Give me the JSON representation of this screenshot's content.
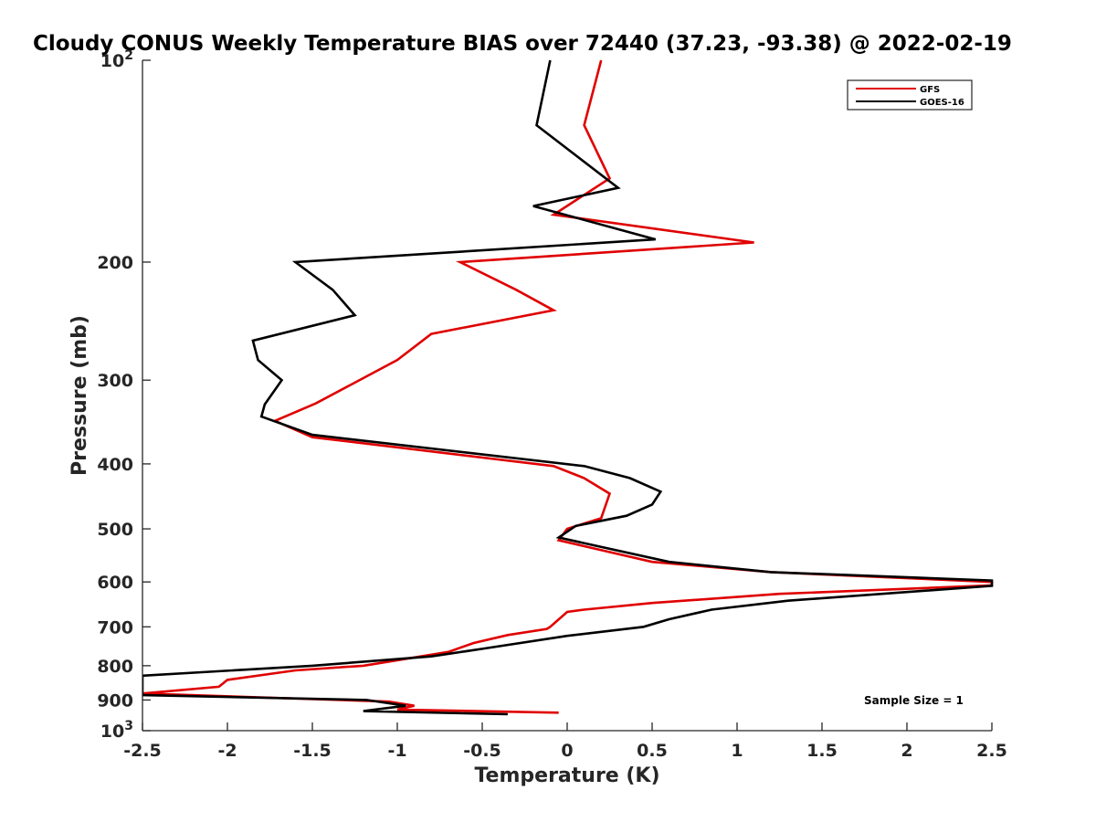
{
  "chart_data": {
    "type": "line",
    "title": "Cloudy CONUS Weekly Temperature BIAS over 72440 (37.23, -93.38) @ 2022-02-19",
    "xlabel": "Temperature (K)",
    "ylabel": "Pressure (mb)",
    "xlim": [
      -2.5,
      2.5
    ],
    "ylim": [
      100,
      1000
    ],
    "y_scale": "log",
    "y_reversed": true,
    "grid": false,
    "legend_position": "top-right",
    "x_ticks": [
      "-2.5",
      "-2",
      "-1.5",
      "-1",
      "-0.5",
      "0",
      "0.5",
      "1",
      "1.5",
      "2",
      "2.5"
    ],
    "y_ticks": [
      {
        "value": 100,
        "base": "10",
        "exp": "2"
      },
      {
        "value": 200,
        "label": "200"
      },
      {
        "value": 300,
        "label": "300"
      },
      {
        "value": 400,
        "label": "400"
      },
      {
        "value": 500,
        "label": "500"
      },
      {
        "value": 600,
        "label": "600"
      },
      {
        "value": 700,
        "label": "700"
      },
      {
        "value": 800,
        "label": "800"
      },
      {
        "value": 900,
        "label": "900"
      },
      {
        "value": 1000,
        "base": "10",
        "exp": "3"
      }
    ],
    "annotation": "Sample Size = 1",
    "series": [
      {
        "name": "GFS",
        "color": "#e00000",
        "points": [
          [
            0.2,
            100
          ],
          [
            0.1,
            125
          ],
          [
            0.25,
            150
          ],
          [
            -0.08,
            170
          ],
          [
            1.1,
            187
          ],
          [
            -0.63,
            200
          ],
          [
            -0.3,
            220
          ],
          [
            -0.08,
            236
          ],
          [
            -0.8,
            256
          ],
          [
            -1.0,
            280
          ],
          [
            -1.48,
            325
          ],
          [
            -1.72,
            345
          ],
          [
            -1.5,
            365
          ],
          [
            -0.08,
            403
          ],
          [
            0.1,
            420
          ],
          [
            0.25,
            443
          ],
          [
            0.2,
            482
          ],
          [
            0.0,
            500
          ],
          [
            -0.05,
            520
          ],
          [
            0.5,
            560
          ],
          [
            1.2,
            580
          ],
          [
            2.5,
            600
          ],
          [
            2.5,
            607
          ],
          [
            1.25,
            625
          ],
          [
            0.5,
            645
          ],
          [
            0.1,
            660
          ],
          [
            0.0,
            665
          ],
          [
            -0.1,
            700
          ],
          [
            -0.12,
            705
          ],
          [
            -0.35,
            720
          ],
          [
            -0.55,
            740
          ],
          [
            -0.7,
            763
          ],
          [
            -1.2,
            800
          ],
          [
            -1.6,
            813
          ],
          [
            -2.0,
            840
          ],
          [
            -2.05,
            860
          ],
          [
            -2.5,
            880
          ],
          [
            -1.05,
            905
          ],
          [
            -0.9,
            918
          ],
          [
            -1.0,
            930
          ],
          [
            -0.05,
            940
          ]
        ]
      },
      {
        "name": "GOES-16",
        "color": "#000000",
        "points": [
          [
            -0.1,
            100
          ],
          [
            -0.18,
            125
          ],
          [
            0.3,
            155
          ],
          [
            -0.2,
            165
          ],
          [
            0.52,
            185
          ],
          [
            -1.6,
            200
          ],
          [
            -1.38,
            220
          ],
          [
            -1.25,
            240
          ],
          [
            -1.85,
            262
          ],
          [
            -1.82,
            280
          ],
          [
            -1.68,
            300
          ],
          [
            -1.78,
            326
          ],
          [
            -1.8,
            340
          ],
          [
            -1.5,
            362
          ],
          [
            0.1,
            403
          ],
          [
            0.37,
            420
          ],
          [
            0.55,
            440
          ],
          [
            0.5,
            460
          ],
          [
            0.35,
            478
          ],
          [
            0.05,
            495
          ],
          [
            0.0,
            505
          ],
          [
            -0.05,
            515
          ],
          [
            0.6,
            560
          ],
          [
            1.2,
            580
          ],
          [
            2.5,
            597
          ],
          [
            2.5,
            608
          ],
          [
            1.3,
            640
          ],
          [
            0.85,
            660
          ],
          [
            0.6,
            682
          ],
          [
            0.45,
            700
          ],
          [
            0.0,
            722
          ],
          [
            -0.5,
            755
          ],
          [
            -0.8,
            775
          ],
          [
            -1.5,
            800
          ],
          [
            -2.5,
            828
          ],
          [
            -2.5,
            885
          ],
          [
            -1.18,
            900
          ],
          [
            -0.95,
            918
          ],
          [
            -1.2,
            935
          ],
          [
            -0.35,
            945
          ]
        ]
      }
    ]
  }
}
